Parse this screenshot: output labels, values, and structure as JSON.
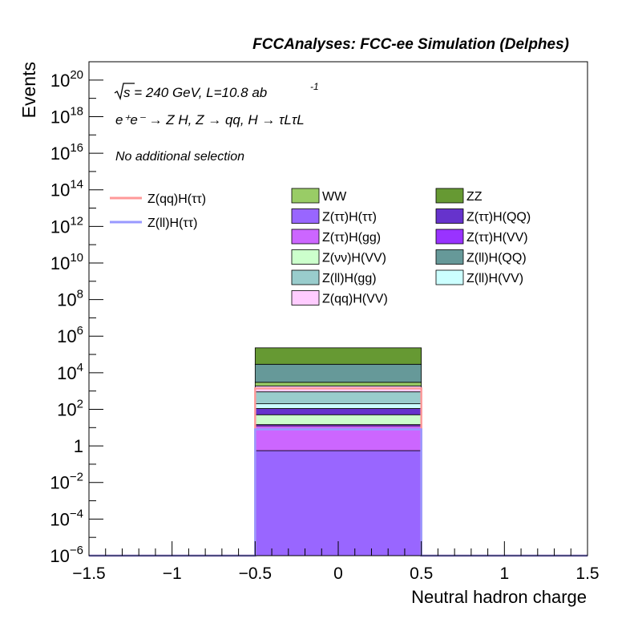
{
  "chart_data": {
    "type": "bar",
    "title": "FCCAnalyses: FCC-ee Simulation (Delphes)",
    "xlabel": "Neutral hadron charge",
    "ylabel": "Events",
    "x_ticks": [
      "−1.5",
      "−1",
      "−0.5",
      "0",
      "0.5",
      "1",
      "1.5"
    ],
    "x_tick_values": [
      -1.5,
      -1,
      -0.5,
      0,
      0.5,
      1,
      1.5
    ],
    "xlim": [
      -1.5,
      1.5
    ],
    "ylim": [
      1e-06,
      1e+21
    ],
    "y_scale": "log",
    "y_ticks": [
      {
        "value": 1e-06,
        "base": "10",
        "exp": "−6"
      },
      {
        "value": 0.0001,
        "base": "10",
        "exp": "−4"
      },
      {
        "value": 0.01,
        "base": "10",
        "exp": "−2"
      },
      {
        "value": 1,
        "base": "1",
        "exp": ""
      },
      {
        "value": 100.0,
        "base": "10",
        "exp": "2"
      },
      {
        "value": 10000.0,
        "base": "10",
        "exp": "4"
      },
      {
        "value": 1000000.0,
        "base": "10",
        "exp": "6"
      },
      {
        "value": 100000000.0,
        "base": "10",
        "exp": "8"
      },
      {
        "value": 10000000000.0,
        "base": "10",
        "exp": "10"
      },
      {
        "value": 1000000000000.0,
        "base": "10",
        "exp": "12"
      },
      {
        "value": 100000000000000.0,
        "base": "10",
        "exp": "14"
      },
      {
        "value": 1e+16,
        "base": "10",
        "exp": "16"
      },
      {
        "value": 1e+18,
        "base": "10",
        "exp": "18"
      },
      {
        "value": 1e+20,
        "base": "10",
        "exp": "20"
      }
    ],
    "bin": [
      -0.5,
      0.5
    ],
    "annotations": {
      "energy": "s = 240 GeV, L=10.8 ab",
      "energy_sup": "-1",
      "process": "e⁺e⁻ → Z H, Z → qq, H → τLτL",
      "selection": "No additional selection"
    },
    "stack": [
      {
        "name": "Z(ττ)H(ττ)",
        "color": "#9966ff",
        "value": 0.55
      },
      {
        "name": "Z(ττ)H(gg)",
        "color": "#cc66ff",
        "value": 12
      },
      {
        "name": "Z(ττ)H(VV)",
        "color": "#9933ff",
        "value": 2
      },
      {
        "name": "Z(νν)H(VV)",
        "color": "#ccffcc",
        "value": 36
      },
      {
        "name": "Z(ττ)H(QQ)",
        "color": "#6633cc",
        "value": 60
      },
      {
        "name": "Z(ll)H(VV)",
        "color": "#ccffff",
        "value": 90
      },
      {
        "name": "Z(ll)H(gg)",
        "color": "#99cccc",
        "value": 700
      },
      {
        "name": "Z(qq)H(VV)",
        "color": "#ffccff",
        "value": 1000
      },
      {
        "name": "WW",
        "color": "#99cc66",
        "value": 1100
      },
      {
        "name": "Z(ll)H(QQ)",
        "color": "#669999",
        "value": 26000
      },
      {
        "name": "ZZ",
        "color": "#669933",
        "value": 200000
      }
    ],
    "lines": [
      {
        "name": "Z(qq)H(ττ)",
        "color": "#ff9999",
        "value": 1400
      },
      {
        "name": "Z(ll)H(ττ)",
        "color": "#9999ff",
        "value": 8
      }
    ],
    "legend_main": [
      {
        "name": "WW",
        "color": "#99cc66"
      },
      {
        "name": "ZZ",
        "color": "#669933"
      },
      {
        "name": "Z(ττ)H(ττ)",
        "color": "#9966ff"
      },
      {
        "name": "Z(ττ)H(QQ)",
        "color": "#6633cc"
      },
      {
        "name": "Z(ττ)H(gg)",
        "color": "#cc66ff"
      },
      {
        "name": "Z(ττ)H(VV)",
        "color": "#9933ff"
      },
      {
        "name": "Z(νν)H(VV)",
        "color": "#ccffcc"
      },
      {
        "name": "Z(ll)H(QQ)",
        "color": "#669999"
      },
      {
        "name": "Z(ll)H(gg)",
        "color": "#99cccc"
      },
      {
        "name": "Z(ll)H(VV)",
        "color": "#ccffff"
      },
      {
        "name": "Z(qq)H(VV)",
        "color": "#ffccff"
      }
    ],
    "legend_lines": [
      {
        "name": "Z(qq)H(ττ)",
        "color": "#ff9999"
      },
      {
        "name": "Z(ll)H(ττ)",
        "color": "#9999ff"
      }
    ]
  }
}
